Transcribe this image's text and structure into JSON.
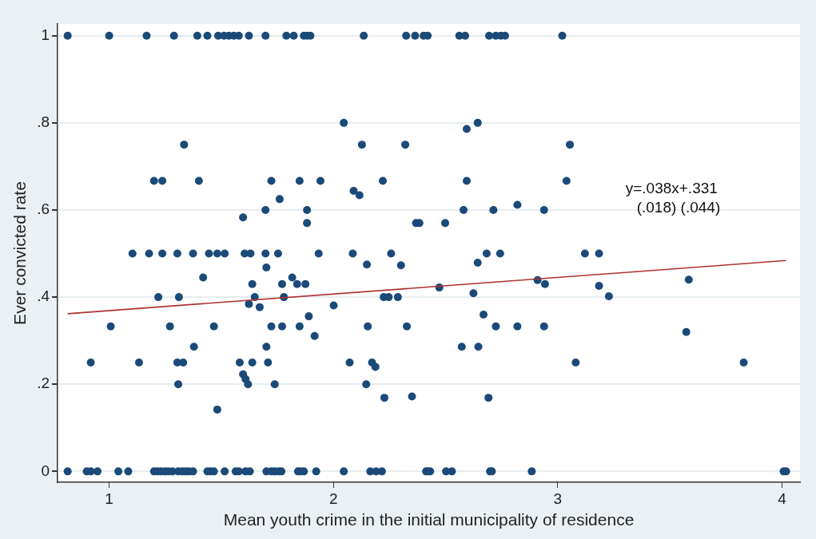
{
  "chart_data": {
    "type": "scatter",
    "xlabel": "Mean youth crime in the initial municipality of residence",
    "ylabel": "Ever convicted rate",
    "xlim": [
      0.77,
      4.08
    ],
    "ylim": [
      -0.025,
      1.027
    ],
    "xticks": [
      1,
      2,
      3,
      4
    ],
    "yticks": [
      {
        "value": 0,
        "label": "0"
      },
      {
        "value": 0.2,
        "label": ".2"
      },
      {
        "value": 0.4,
        "label": ".4"
      },
      {
        "value": 0.6,
        "label": ".6"
      },
      {
        "value": 0.8,
        "label": ".8"
      },
      {
        "value": 1,
        "label": "1"
      }
    ],
    "grid": "y",
    "annotations": [
      "y=.038x+.331",
      "(.018) (.044)"
    ],
    "series": [
      {
        "color": "#1b4a78",
        "marker": "circle",
        "x": [
          0.815,
          1.0,
          1.167,
          1.289,
          1.393,
          1.438,
          1.486,
          1.512,
          1.534,
          1.556,
          1.578,
          1.623,
          1.697,
          1.79,
          1.823,
          1.868,
          1.882,
          1.897,
          2.135,
          2.324,
          2.364,
          2.402,
          2.42,
          2.561,
          2.587,
          2.694,
          2.724,
          2.746,
          2.765,
          3.02,
          0.815,
          0.9,
          0.918,
          0.948,
          1.041,
          1.085,
          1.2,
          1.215,
          1.23,
          1.248,
          1.263,
          1.282,
          1.308,
          1.326,
          1.341,
          1.356,
          1.374,
          1.438,
          1.452,
          1.467,
          1.515,
          1.564,
          1.578,
          1.608,
          1.627,
          1.701,
          1.723,
          1.738,
          1.756,
          1.768,
          1.842,
          1.853,
          1.868,
          1.923,
          2.046,
          2.164,
          2.19,
          2.216,
          2.413,
          2.42,
          2.431,
          2.502,
          2.528,
          2.698,
          2.706,
          2.884,
          4.007,
          4.018,
          1.334,
          1.2,
          1.237,
          1.4,
          1.723,
          1.849,
          1.76,
          1.697,
          1.597,
          2.046,
          2.594,
          2.643,
          2.127,
          2.32,
          1.942,
          2.22,
          2.594,
          2.09,
          2.116,
          1.882,
          2.58,
          2.713,
          2.82,
          2.939,
          1.882,
          2.368,
          2.383,
          2.498,
          3.054,
          3.039,
          1.104,
          1.178,
          1.237,
          1.304,
          1.374,
          1.445,
          1.482,
          1.515,
          1.604,
          1.63,
          1.697,
          1.753,
          1.701,
          1.419,
          1.638,
          1.771,
          1.816,
          1.838,
          1.875,
          1.219,
          1.311,
          1.649,
          1.779,
          1.623,
          1.671,
          1.007,
          1.271,
          1.467,
          1.723,
          1.771,
          1.849,
          1.378,
          1.701,
          0.918,
          1.133,
          1.304,
          1.33,
          1.582,
          1.638,
          1.708,
          1.597,
          1.608,
          1.308,
          1.619,
          1.738,
          1.482,
          1.934,
          2.086,
          2.149,
          2.257,
          2.301,
          2.683,
          2.743,
          2.643,
          2.472,
          2.624,
          2.91,
          2.943,
          2.224,
          2.246,
          2.287,
          2.001,
          1.89,
          2.153,
          2.327,
          2.669,
          2.724,
          2.82,
          2.939,
          1.916,
          2.572,
          2.646,
          2.072,
          2.172,
          2.187,
          2.146,
          2.227,
          2.35,
          2.691,
          3.121,
          3.184,
          3.184,
          3.228,
          3.584,
          3.573,
          3.08,
          3.829
        ],
        "values": [
          1,
          1,
          1,
          1,
          1,
          1,
          1,
          1,
          1,
          1,
          1,
          1,
          1,
          1,
          1,
          1,
          1,
          1,
          1,
          1,
          1,
          1,
          1,
          1,
          1,
          1,
          1,
          1,
          1,
          1,
          0,
          0,
          0,
          0,
          0,
          0,
          0,
          0,
          0,
          0,
          0,
          0,
          0,
          0,
          0,
          0,
          0,
          0,
          0,
          0,
          0,
          0,
          0,
          0,
          0,
          0,
          0,
          0,
          0,
          0,
          0,
          0,
          0,
          0,
          0,
          0,
          0,
          0,
          0,
          0,
          0,
          0,
          0,
          0,
          0,
          0,
          0,
          0,
          0.75,
          0.667,
          0.667,
          0.667,
          0.667,
          0.667,
          0.625,
          0.6,
          0.583,
          0.8,
          0.786,
          0.8,
          0.75,
          0.75,
          0.667,
          0.667,
          0.667,
          0.644,
          0.634,
          0.6,
          0.6,
          0.6,
          0.612,
          0.6,
          0.57,
          0.57,
          0.57,
          0.57,
          0.75,
          0.667,
          0.5,
          0.5,
          0.5,
          0.5,
          0.5,
          0.5,
          0.5,
          0.5,
          0.5,
          0.5,
          0.5,
          0.5,
          0.468,
          0.445,
          0.43,
          0.43,
          0.445,
          0.43,
          0.43,
          0.4,
          0.4,
          0.4,
          0.4,
          0.384,
          0.377,
          0.333,
          0.333,
          0.333,
          0.333,
          0.333,
          0.333,
          0.286,
          0.286,
          0.25,
          0.25,
          0.25,
          0.25,
          0.25,
          0.25,
          0.25,
          0.223,
          0.212,
          0.2,
          0.2,
          0.2,
          0.142,
          0.5,
          0.5,
          0.475,
          0.5,
          0.473,
          0.5,
          0.5,
          0.479,
          0.422,
          0.409,
          0.439,
          0.43,
          0.4,
          0.4,
          0.4,
          0.381,
          0.356,
          0.333,
          0.333,
          0.36,
          0.333,
          0.333,
          0.333,
          0.311,
          0.286,
          0.286,
          0.25,
          0.25,
          0.24,
          0.2,
          0.169,
          0.172,
          0.169,
          0.5,
          0.5,
          0.426,
          0.402,
          0.44,
          0.32,
          0.25,
          0.25
        ]
      },
      {
        "type": "line",
        "color": "#b03030",
        "x": [
          0.815,
          4.018
        ],
        "values": [
          0.362,
          0.484
        ]
      }
    ]
  }
}
